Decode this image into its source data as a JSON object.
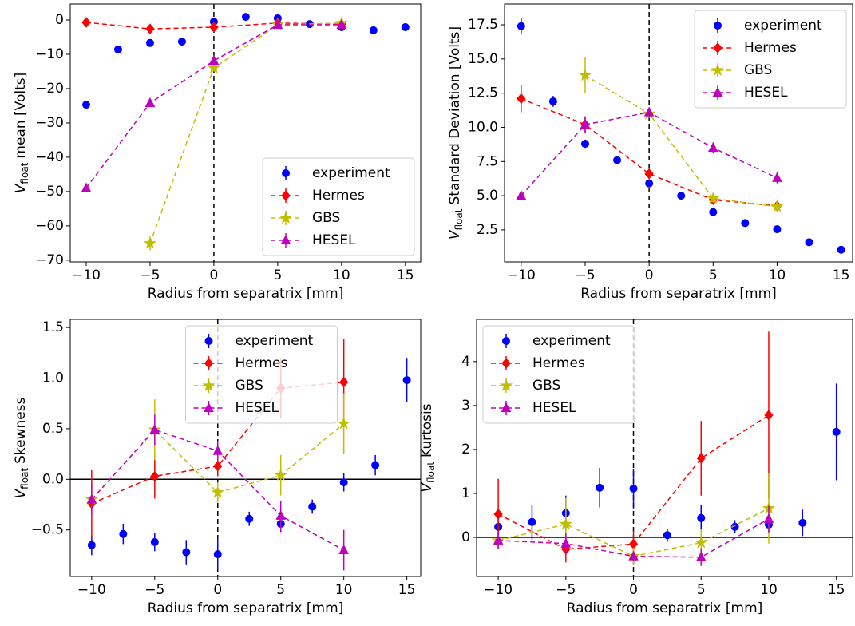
{
  "chart_data": [
    {
      "type": "errorbar",
      "xlabel": "Radius from separatrix [mm]",
      "ylabel": {
        "symbol": "V",
        "subscript": "float",
        "text": "mean [Volts]"
      },
      "xlim": [
        -11.25,
        16.2
      ],
      "ylim": [
        -70.5,
        4.65
      ],
      "xticks": [
        {
          "value": -10,
          "label": "−10"
        },
        {
          "value": -5,
          "label": "−5"
        },
        0,
        5,
        10,
        15
      ],
      "yticks": [
        0,
        {
          "value": -10,
          "label": "−10"
        },
        {
          "value": -20,
          "label": "−20"
        },
        {
          "value": -30,
          "label": "−30"
        },
        {
          "value": -40,
          "label": "−40"
        },
        {
          "value": -50,
          "label": "−50"
        },
        {
          "value": -60,
          "label": "−60"
        },
        {
          "value": -70,
          "label": "−70"
        }
      ],
      "vline": 0,
      "legend": "lower right",
      "series": [
        {
          "name": "experiment",
          "color": "#0000ff",
          "marker": "circle",
          "line": false,
          "x": [
            -10,
            -7.5,
            -5,
            -2.5,
            0,
            2.5,
            5,
            7.5,
            10,
            12.5,
            15
          ],
          "values": [
            -24.7,
            -8.6,
            -6.7,
            -6.3,
            -0.5,
            0.9,
            0.5,
            -1.2,
            -2.1,
            -3,
            -2.1
          ],
          "errors": [
            0.5,
            0.5,
            0.5,
            0.5,
            0.5,
            0.5,
            0.5,
            0.5,
            0.5,
            0.5,
            0.5
          ]
        },
        {
          "name": "Hermes",
          "color": "#ff0000",
          "marker": "diamond",
          "line": true,
          "x": [
            -10,
            -5,
            0,
            5,
            10
          ],
          "values": [
            -0.7,
            -2.6,
            -2.1,
            -0.9,
            -1.2
          ],
          "errors": [
            0.6,
            0.6,
            0.6,
            0.6,
            0.6
          ]
        },
        {
          "name": "GBS",
          "color": "#bfbf00",
          "marker": "star",
          "line": true,
          "x": [
            -5,
            0,
            5,
            10
          ],
          "values": [
            -65.1,
            -14,
            -1.4,
            -0.9
          ],
          "errors": [
            2,
            1,
            0.6,
            0.6
          ]
        },
        {
          "name": "HESEL",
          "color": "#bf00bf",
          "marker": "triangle",
          "line": true,
          "x": [
            -10,
            -5,
            0,
            5,
            10
          ],
          "values": [
            -49,
            -24.2,
            -11.9,
            -1.4,
            -1.4
          ],
          "errors": [
            0.6,
            0.6,
            0.6,
            0.6,
            0.6
          ]
        }
      ]
    },
    {
      "type": "errorbar",
      "xlabel": "Radius from separatrix [mm]",
      "ylabel": {
        "symbol": "V",
        "subscript": "float",
        "text": "Standard Deviation [Volts]"
      },
      "xlim": [
        -11.3,
        15.9
      ],
      "ylim": [
        0.16,
        19.02
      ],
      "xticks": [
        {
          "value": -10,
          "label": "−10"
        },
        {
          "value": -5,
          "label": "−5"
        },
        0,
        5,
        10,
        15
      ],
      "yticks": [
        2.5,
        {
          "value": 5,
          "label": "5.0"
        },
        7.5,
        {
          "value": 10,
          "label": "10.0"
        },
        12.5,
        {
          "value": 15,
          "label": "15.0"
        },
        17.5
      ],
      "vline": 0,
      "legend": "upper right",
      "series": [
        {
          "name": "experiment",
          "color": "#0000ff",
          "marker": "circle",
          "line": false,
          "x": [
            -10,
            -7.5,
            -5,
            -2.5,
            0,
            2.5,
            5,
            7.5,
            10,
            12.5,
            15
          ],
          "values": [
            17.4,
            11.9,
            8.8,
            7.6,
            5.9,
            5.0,
            3.8,
            3.0,
            2.55,
            1.6,
            1.05
          ],
          "errors": [
            0.6,
            0.4,
            0.3,
            0.2,
            0.2,
            0.15,
            0.15,
            0.1,
            0.1,
            0.1,
            0.1
          ]
        },
        {
          "name": "Hermes",
          "color": "#ff0000",
          "marker": "diamond",
          "line": true,
          "x": [
            -10,
            -5,
            0,
            5,
            10
          ],
          "values": [
            12.1,
            10.2,
            6.6,
            4.7,
            4.25
          ],
          "errors": [
            1.0,
            0.6,
            0.4,
            0.3,
            0.3
          ]
        },
        {
          "name": "GBS",
          "color": "#bfbf00",
          "marker": "star",
          "line": true,
          "x": [
            -5,
            0,
            5,
            10
          ],
          "values": [
            13.8,
            11.0,
            4.8,
            4.2
          ],
          "errors": [
            1.3,
            0.3,
            0.3,
            0.4
          ]
        },
        {
          "name": "HESEL",
          "color": "#bf00bf",
          "marker": "triangle",
          "line": true,
          "x": [
            -10,
            -5,
            0,
            5,
            10
          ],
          "values": [
            5.0,
            10.2,
            11.1,
            8.5,
            6.3
          ],
          "errors": [
            0.2,
            0.6,
            0.3,
            0.4,
            0.4
          ]
        }
      ]
    },
    {
      "type": "errorbar",
      "xlabel": "Radius from separatrix [mm]",
      "ylabel": {
        "symbol": "V",
        "subscript": "float",
        "text": "Skewness"
      },
      "xlim": [
        -11.7,
        16.1
      ],
      "ylim": [
        -0.96,
        1.58
      ],
      "xticks": [
        {
          "value": -10,
          "label": "−10"
        },
        {
          "value": -5,
          "label": "−5"
        },
        0,
        5,
        10,
        15
      ],
      "yticks": [
        {
          "value": -0.5,
          "label": "−0.5"
        },
        {
          "value": 0,
          "label": "0.0"
        },
        0.5,
        {
          "value": 1,
          "label": "1.0"
        },
        1.5
      ],
      "vline": 0,
      "hline": 0,
      "legend": "upper center",
      "series": [
        {
          "name": "experiment",
          "color": "#0000ff",
          "marker": "circle",
          "line": false,
          "x": [
            -10,
            -7.5,
            -5,
            -2.5,
            0,
            2.5,
            5,
            7.5,
            10,
            12.5,
            15
          ],
          "values": [
            -0.65,
            -0.54,
            -0.62,
            -0.72,
            -0.74,
            -0.39,
            -0.44,
            -0.27,
            -0.03,
            0.14,
            0.98
          ],
          "errors": [
            0.1,
            0.1,
            0.09,
            0.12,
            0.15,
            0.07,
            0.08,
            0.07,
            0.09,
            0.1,
            0.22
          ]
        },
        {
          "name": "Hermes",
          "color": "#ff0000",
          "marker": "diamond",
          "line": true,
          "x": [
            -10,
            -5,
            0,
            5,
            10
          ],
          "values": [
            -0.24,
            0.03,
            0.13,
            0.9,
            0.96
          ],
          "errors": [
            0.33,
            0.22,
            0.1,
            0.3,
            0.43
          ]
        },
        {
          "name": "GBS",
          "color": "#bfbf00",
          "marker": "star",
          "line": true,
          "x": [
            -10,
            -5,
            0,
            5,
            10
          ],
          "values": [
            -0.2,
            0.49,
            -0.13,
            0.04,
            0.55
          ],
          "errors": [
            0.1,
            0.3,
            0.1,
            0.2,
            0.3
          ]
        },
        {
          "name": "HESEL",
          "color": "#bf00bf",
          "marker": "triangle",
          "line": true,
          "x": [
            -10,
            -5,
            0,
            5,
            10
          ],
          "values": [
            -0.2,
            0.49,
            0.28,
            -0.36,
            -0.7
          ],
          "errors": [
            0.15,
            0.15,
            0.1,
            0.15,
            0.2
          ]
        }
      ]
    },
    {
      "type": "errorbar",
      "xlabel": "Radius from separatrix [mm]",
      "ylabel": {
        "symbol": "V",
        "subscript": "float",
        "text": "Kurtosis"
      },
      "xlim": [
        -11.6,
        16.2
      ],
      "ylim": [
        -0.89,
        4.96
      ],
      "xticks": [
        {
          "value": -10,
          "label": "−10"
        },
        {
          "value": -5,
          "label": "−5"
        },
        0,
        5,
        10,
        15
      ],
      "yticks": [
        0,
        1,
        2,
        3,
        4
      ],
      "vline": 0,
      "hline": 0,
      "legend": "upper left",
      "series": [
        {
          "name": "experiment",
          "color": "#0000ff",
          "marker": "circle",
          "line": false,
          "x": [
            -10,
            -7.5,
            -5,
            -2.5,
            0,
            2.5,
            5,
            7.5,
            10,
            12.5,
            15
          ],
          "values": [
            0.24,
            0.35,
            0.55,
            1.13,
            1.11,
            0.05,
            0.44,
            0.24,
            0.29,
            0.33,
            2.4
          ],
          "errors": [
            0.2,
            0.4,
            0.4,
            0.45,
            0.45,
            0.15,
            0.3,
            0.15,
            0.2,
            0.3,
            1.1
          ]
        },
        {
          "name": "Hermes",
          "color": "#ff0000",
          "marker": "diamond",
          "line": true,
          "x": [
            -10,
            -5,
            0,
            5,
            10
          ],
          "values": [
            0.53,
            -0.27,
            -0.15,
            1.8,
            2.78
          ],
          "errors": [
            0.8,
            0.3,
            0.3,
            0.85,
            1.9
          ]
        },
        {
          "name": "GBS",
          "color": "#bfbf00",
          "marker": "star",
          "line": true,
          "x": [
            -10,
            -5,
            0,
            5,
            10
          ],
          "values": [
            -0.07,
            0.3,
            -0.43,
            -0.12,
            0.66
          ],
          "errors": [
            0.2,
            0.6,
            0.2,
            0.3,
            0.8
          ]
        },
        {
          "name": "HESEL",
          "color": "#bf00bf",
          "marker": "triangle",
          "line": true,
          "x": [
            -10,
            -5,
            0,
            5,
            10
          ],
          "values": [
            -0.07,
            -0.14,
            -0.43,
            -0.45,
            0.42
          ],
          "errors": [
            0.2,
            0.25,
            0.1,
            0.2,
            0.3
          ]
        }
      ]
    }
  ]
}
